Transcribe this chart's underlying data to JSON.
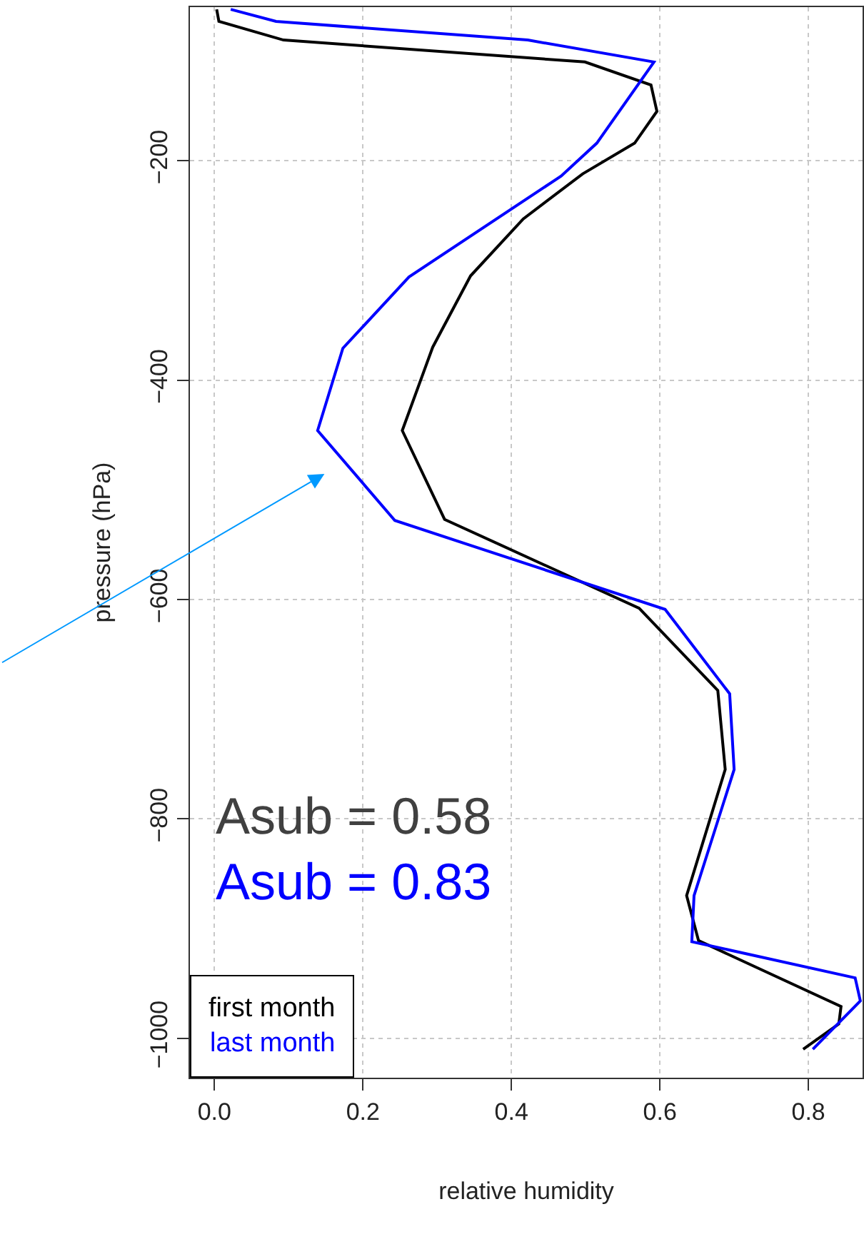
{
  "chart_data": {
    "type": "line",
    "xlabel": "relative humidity",
    "ylabel": "pressure (hPa)",
    "xlim": [
      -0.033,
      0.873
    ],
    "xticks": [
      {
        "value": 0,
        "label": "0.0"
      },
      0.2,
      0.4,
      0.6,
      0.8
    ],
    "ylim": [
      -1036,
      -60
    ],
    "yticks": [
      -200,
      -400,
      -600,
      -800,
      -1000
    ],
    "grid": true,
    "legend": "bottom left",
    "line_style": "solid",
    "marker": "none",
    "annotations": [
      "Asub = 0.58",
      "Asub = 0.83"
    ],
    "series": [
      {
        "name": "first month",
        "color": "#000000",
        "x": [
          0.003,
          0.006,
          0.093,
          0.499,
          0.588,
          0.596,
          0.566,
          0.496,
          0.416,
          0.345,
          0.294,
          0.253,
          0.31,
          0.572,
          0.678,
          0.688,
          0.636,
          0.652,
          0.844,
          0.841,
          0.793
        ],
        "values": [
          -62,
          -73,
          -90,
          -110,
          -131,
          -155,
          -184,
          -212,
          -253,
          -305,
          -370,
          -446,
          -527,
          -608,
          -683,
          -755,
          -870,
          -911,
          -971,
          -987,
          -1010
        ]
      },
      {
        "name": "last month",
        "color": "#0000ff",
        "x": [
          0.022,
          0.083,
          0.422,
          0.592,
          0.515,
          0.467,
          0.262,
          0.173,
          0.139,
          0.243,
          0.607,
          0.694,
          0.7,
          0.646,
          0.643,
          0.863,
          0.87,
          0.806
        ],
        "values": [
          -62,
          -73,
          -90,
          -110,
          -184,
          -214,
          -306,
          -371,
          -446,
          -528,
          -609,
          -686,
          -755,
          -870,
          -912,
          -945,
          -966,
          -1010
        ]
      }
    ]
  }
}
